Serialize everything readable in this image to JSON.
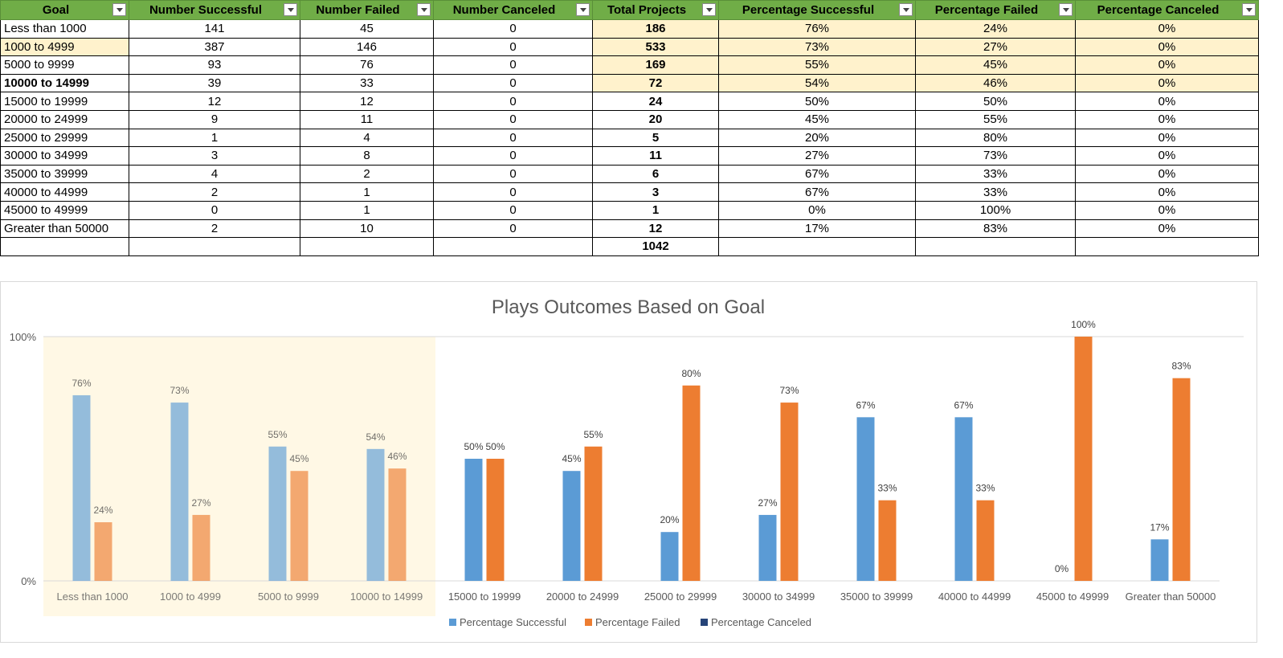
{
  "table": {
    "headers": [
      "Goal",
      "Number Successful",
      "Number Failed",
      "Number Canceled",
      "Total Projects",
      "Percentage Successful",
      "Percentage Failed",
      "Percentage Canceled"
    ],
    "rows": [
      [
        "Less than 1000",
        "141",
        "45",
        "0",
        "186",
        "76%",
        "24%",
        "0%"
      ],
      [
        "1000 to 4999",
        "387",
        "146",
        "0",
        "533",
        "73%",
        "27%",
        "0%"
      ],
      [
        "5000 to 9999",
        "93",
        "76",
        "0",
        "169",
        "55%",
        "45%",
        "0%"
      ],
      [
        "10000 to 14999",
        "39",
        "33",
        "0",
        "72",
        "54%",
        "46%",
        "0%"
      ],
      [
        "15000 to 19999",
        "12",
        "12",
        "0",
        "24",
        "50%",
        "50%",
        "0%"
      ],
      [
        "20000 to 24999",
        "9",
        "11",
        "0",
        "20",
        "45%",
        "55%",
        "0%"
      ],
      [
        "25000 to 29999",
        "1",
        "4",
        "0",
        "5",
        "20%",
        "80%",
        "0%"
      ],
      [
        "30000 to 34999",
        "3",
        "8",
        "0",
        "11",
        "27%",
        "73%",
        "0%"
      ],
      [
        "35000 to 39999",
        "4",
        "2",
        "0",
        "6",
        "67%",
        "33%",
        "0%"
      ],
      [
        "40000 to 44999",
        "2",
        "1",
        "0",
        "3",
        "67%",
        "33%",
        "0%"
      ],
      [
        "45000 to 49999",
        "0",
        "1",
        "0",
        "1",
        "0%",
        "100%",
        "0%"
      ],
      [
        "Greater than 50000",
        "2",
        "10",
        "0",
        "12",
        "17%",
        "83%",
        "0%"
      ]
    ],
    "total": "1042",
    "header_color": "#70ad47",
    "highlight_color": "#fff2cc"
  },
  "chart_data": {
    "type": "bar",
    "title": "Plays Outcomes Based on Goal",
    "categories": [
      "Less than 1000",
      "1000 to 4999",
      "5000 to 9999",
      "10000 to 14999",
      "15000 to 19999",
      "20000 to 24999",
      "25000 to 29999",
      "30000 to 34999",
      "35000 to 39999",
      "40000 to 44999",
      "45000 to 49999",
      "Greater than 50000"
    ],
    "series": [
      {
        "name": "Percentage Successful",
        "color": "#5b9bd5",
        "values": [
          76,
          73,
          55,
          54,
          50,
          45,
          20,
          27,
          67,
          67,
          0,
          17
        ],
        "labels": [
          "76%",
          "73%",
          "55%",
          "54%",
          "50%",
          "45%",
          "20%",
          "27%",
          "67%",
          "67%",
          "0%",
          "17%"
        ]
      },
      {
        "name": "Percentage Failed",
        "color": "#ed7d31",
        "values": [
          24,
          27,
          45,
          46,
          50,
          55,
          80,
          73,
          33,
          33,
          100,
          83
        ],
        "labels": [
          "24%",
          "27%",
          "45%",
          "46%",
          "50%",
          "55%",
          "80%",
          "73%",
          "33%",
          "33%",
          "100%",
          "83%"
        ]
      },
      {
        "name": "Percentage Canceled",
        "color": "#264478",
        "values": [
          0,
          0,
          0,
          0,
          0,
          0,
          0,
          0,
          0,
          0,
          0,
          0
        ],
        "labels": []
      }
    ],
    "yticks": [
      "0%",
      "100%"
    ],
    "ylim": [
      0,
      100
    ],
    "highlighted_categories": [
      0,
      1,
      2,
      3
    ],
    "grid": true,
    "legend": "bottom"
  }
}
